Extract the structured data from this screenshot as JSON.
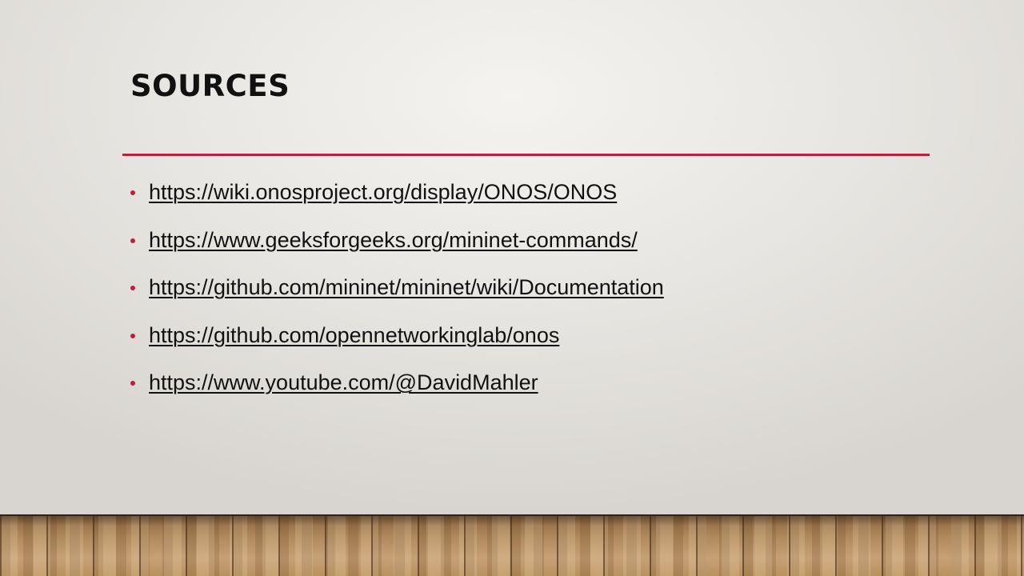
{
  "slide": {
    "title": "SOURCES",
    "accent_color": "#b5243f",
    "links": [
      {
        "text": "https://wiki.onosproject.org/display/ONOS/ONOS"
      },
      {
        "text": "https://www.geeksforgeeks.org/mininet-commands/"
      },
      {
        "text": "https://github.com/mininet/mininet/wiki/Documentation"
      },
      {
        "text": "https://github.com/opennetworkinglab/onos"
      },
      {
        "text": "https://www.youtube.com/@DavidMahler"
      }
    ]
  }
}
